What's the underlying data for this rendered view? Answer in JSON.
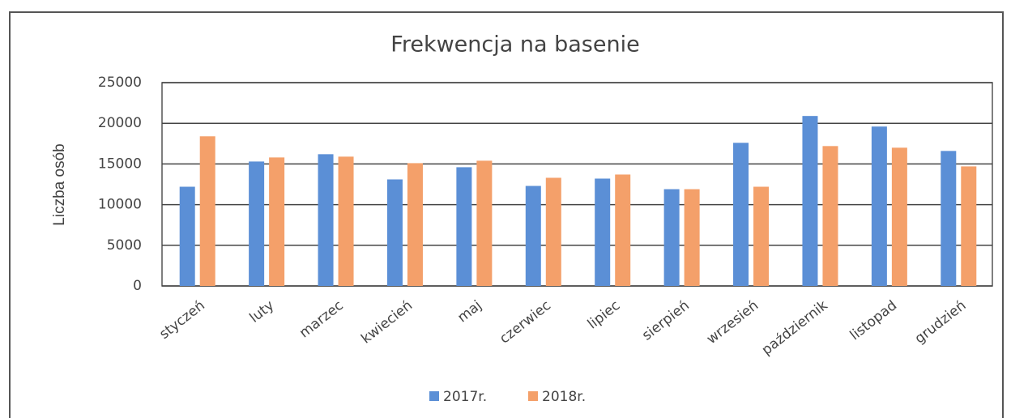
{
  "chart_data": {
    "type": "bar",
    "title": "Frekwencja na basenie",
    "y_label": "Liczba osób",
    "categories": [
      "styczeń",
      "luty",
      "marzec",
      "kwiecień",
      "maj",
      "czerwiec",
      "lipiec",
      "sierpień",
      "wrzesień",
      "październik",
      "listopad",
      "grudzień"
    ],
    "series": [
      {
        "name": "2017r.",
        "color": "#5b8fd6",
        "values": [
          12200,
          15300,
          16200,
          13100,
          14600,
          12300,
          13200,
          11900,
          17600,
          20900,
          19600,
          16600
        ]
      },
      {
        "name": "2018r.",
        "color": "#f4a06a",
        "values": [
          18400,
          15800,
          15900,
          15100,
          15400,
          13300,
          13700,
          11900,
          12200,
          17200,
          17000,
          14700
        ]
      }
    ],
    "ylim": [
      0,
      25000
    ],
    "yticks": [
      0,
      5000,
      10000,
      15000,
      20000,
      25000
    ],
    "grid": true,
    "legend": "bottom"
  }
}
